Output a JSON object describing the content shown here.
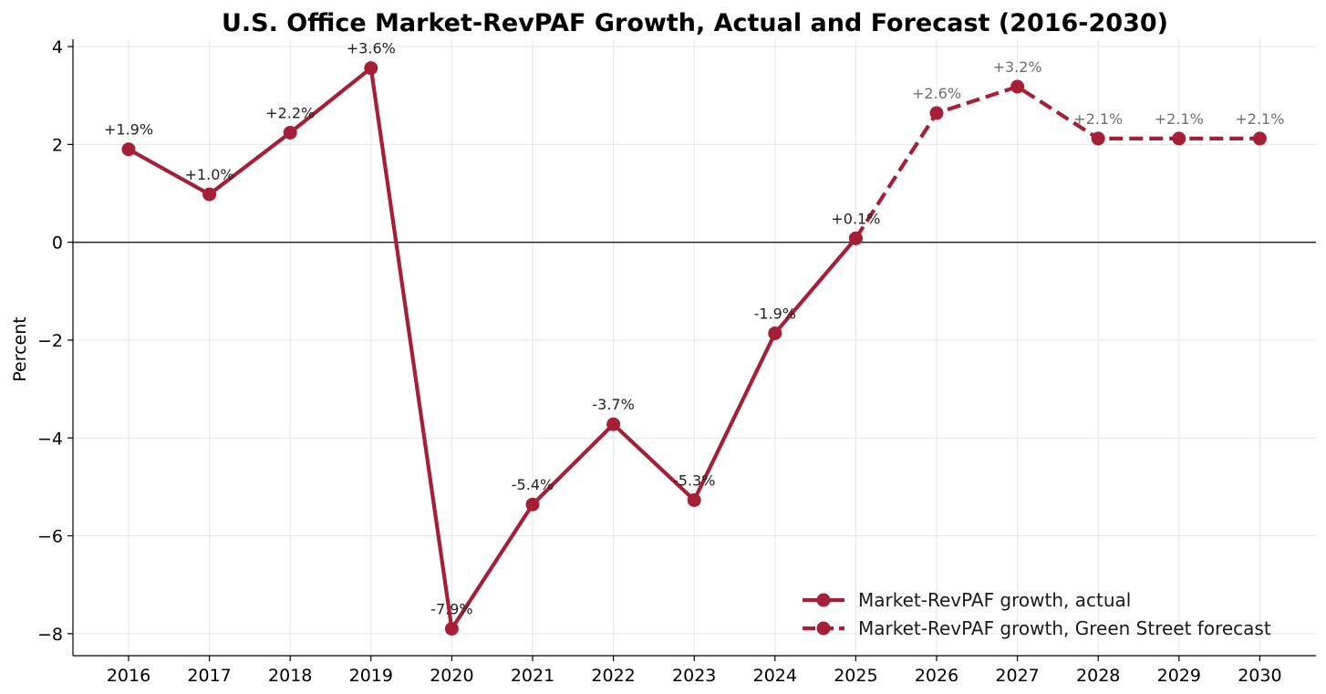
{
  "chart_data": {
    "type": "line",
    "title": "U.S. Office Market-RevPAF Growth, Actual and Forecast (2016-2030)",
    "xlabel": "",
    "ylabel": "Percent",
    "x": [
      "2016",
      "2017",
      "2018",
      "2019",
      "2020",
      "2021",
      "2022",
      "2023",
      "2024",
      "2025",
      "2026",
      "2027",
      "2028",
      "2029",
      "2030"
    ],
    "ylim": [
      -8.45,
      4.15
    ],
    "yticks": [
      4,
      2,
      0,
      -2,
      -4,
      -6,
      -8
    ],
    "ytick_labels": [
      "4",
      "2",
      "0",
      "−2",
      "−4",
      "−6",
      "−8"
    ],
    "grid": true,
    "zero_line": true,
    "legend_position": "lower-right",
    "colors": {
      "series": "#a51f36",
      "actual_label": "#222222",
      "forecast_label": "#6e6e6e",
      "axis": "#000000",
      "grid": "#e6e6e6"
    },
    "series": [
      {
        "name": "Market-RevPAF growth, actual",
        "style": "solid",
        "x": [
          "2016",
          "2017",
          "2018",
          "2019",
          "2020",
          "2021",
          "2022",
          "2023",
          "2024",
          "2025"
        ],
        "values": [
          1.9,
          0.98,
          2.24,
          3.56,
          -7.9,
          -5.36,
          -3.72,
          -5.27,
          -1.86,
          0.08
        ],
        "labels": [
          "+1.9%",
          "+1.0%",
          "+2.2%",
          "+3.6%",
          "-7.9%",
          "-5.4%",
          "-3.7%",
          "-5.3%",
          "-1.9%",
          "+0.1%"
        ]
      },
      {
        "name": "Market-RevPAF growth, Green Street forecast",
        "style": "dashed",
        "x": [
          "2025",
          "2026",
          "2027",
          "2028",
          "2029",
          "2030"
        ],
        "values": [
          0.08,
          2.64,
          3.18,
          2.12,
          2.12,
          2.12
        ],
        "labels": [
          "",
          "+2.6%",
          "+3.2%",
          "+2.1%",
          "+2.1%",
          "+2.1%"
        ]
      }
    ]
  }
}
